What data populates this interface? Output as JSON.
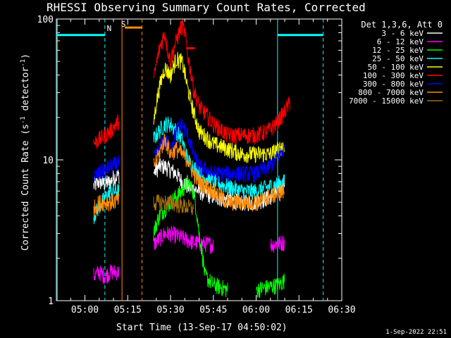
{
  "chart_data": {
    "type": "line",
    "title": "RHESSI Observing Summary Count Rates, Corrected",
    "xlabel": "Start Time (13-Sep-17 04:50:02)",
    "ylabel_main": "Corrected Count Rate (s",
    "ylabel_sup1": "-1",
    "ylabel_mid": " detector",
    "ylabel_sup2": "-1",
    "ylabel_end": ")",
    "y_scale": "log",
    "ylim": [
      1,
      100
    ],
    "xlim_minutes": [
      0,
      100
    ],
    "x_ticks": [
      {
        "m": 10,
        "label": "05:00"
      },
      {
        "m": 25,
        "label": "05:15"
      },
      {
        "m": 40,
        "label": "05:30"
      },
      {
        "m": 55,
        "label": "05:45"
      },
      {
        "m": 70,
        "label": "06:00"
      },
      {
        "m": 85,
        "label": "06:15"
      },
      {
        "m": 100,
        "label": "06:30"
      }
    ],
    "y_ticks": [
      {
        "v": 1,
        "label": "1"
      },
      {
        "v": 10,
        "label": "10"
      },
      {
        "v": 100,
        "label": "100"
      }
    ],
    "legend_header": "Det 1,3,6, Att 0",
    "legend_position": "top-right-outside",
    "series": [
      {
        "name": "3 - 6 keV",
        "color": "#ffffff",
        "points": [
          [
            13,
            6.5
          ],
          [
            15,
            7
          ],
          [
            17,
            6.8
          ],
          [
            19,
            7
          ],
          [
            20,
            7.5
          ],
          [
            22,
            7.8
          ],
          [
            34,
            8
          ],
          [
            36,
            9
          ],
          [
            38,
            9
          ],
          [
            40,
            8.5
          ],
          [
            42,
            8
          ],
          [
            44,
            7
          ],
          [
            46,
            6.5
          ],
          [
            50,
            6
          ],
          [
            55,
            5.5
          ],
          [
            60,
            5.2
          ],
          [
            65,
            5
          ],
          [
            70,
            5
          ],
          [
            75,
            5.5
          ],
          [
            78,
            6
          ],
          [
            80,
            7
          ]
        ]
      },
      {
        "name": "6 - 12 keV",
        "color": "#ff00ff",
        "points": [
          [
            13,
            1.5
          ],
          [
            15,
            1.6
          ],
          [
            17,
            1.5
          ],
          [
            19,
            1.6
          ],
          [
            22,
            1.6
          ],
          [
            34,
            2.5
          ],
          [
            38,
            3
          ],
          [
            40,
            3
          ],
          [
            44,
            2.8
          ],
          [
            48,
            2.6
          ],
          [
            55,
            2.5
          ],
          [
            65,
            2.5
          ],
          [
            75,
            2.5
          ],
          [
            80,
            2.6
          ]
        ]
      },
      {
        "name": "12 - 25 keV",
        "color": "#00ff00",
        "points": [
          [
            34,
            3
          ],
          [
            36,
            4
          ],
          [
            40,
            5
          ],
          [
            44,
            6
          ],
          [
            46,
            7
          ],
          [
            48,
            6
          ],
          [
            50,
            3
          ],
          [
            52,
            1.5
          ],
          [
            55,
            1.3
          ],
          [
            60,
            1.2
          ],
          [
            70,
            1.2
          ],
          [
            78,
            1.3
          ],
          [
            80,
            1.4
          ]
        ]
      },
      {
        "name": "25 - 50 keV",
        "color": "#00ffff",
        "points": [
          [
            13,
            4
          ],
          [
            16,
            5
          ],
          [
            19,
            6
          ],
          [
            22,
            6
          ],
          [
            34,
            14
          ],
          [
            36,
            16
          ],
          [
            38,
            18
          ],
          [
            40,
            18
          ],
          [
            42,
            16
          ],
          [
            44,
            14
          ],
          [
            46,
            10
          ],
          [
            50,
            8
          ],
          [
            55,
            7
          ],
          [
            60,
            6.5
          ],
          [
            65,
            6
          ],
          [
            70,
            6
          ],
          [
            75,
            6.5
          ],
          [
            80,
            7
          ]
        ]
      },
      {
        "name": "50 - 100 keV",
        "color": "#ffff00",
        "points": [
          [
            34,
            18
          ],
          [
            36,
            32
          ],
          [
            38,
            45
          ],
          [
            40,
            40
          ],
          [
            42,
            52
          ],
          [
            44,
            50
          ],
          [
            46,
            32
          ],
          [
            48,
            22
          ],
          [
            50,
            16
          ],
          [
            55,
            13
          ],
          [
            60,
            12
          ],
          [
            65,
            11
          ],
          [
            70,
            11
          ],
          [
            75,
            11
          ],
          [
            78,
            12
          ],
          [
            80,
            13
          ]
        ]
      },
      {
        "name": "100 - 300 keV",
        "color": "#ff0000",
        "points": [
          [
            13,
            13
          ],
          [
            15,
            14
          ],
          [
            17,
            15
          ],
          [
            19,
            16
          ],
          [
            21,
            18
          ],
          [
            22,
            19
          ],
          [
            34,
            35
          ],
          [
            36,
            60
          ],
          [
            38,
            80
          ],
          [
            39,
            60
          ],
          [
            40,
            50
          ],
          [
            42,
            70
          ],
          [
            44,
            90
          ],
          [
            45,
            80
          ],
          [
            46,
            55
          ],
          [
            48,
            32
          ],
          [
            50,
            24
          ],
          [
            55,
            18
          ],
          [
            60,
            15
          ],
          [
            65,
            15
          ],
          [
            70,
            15
          ],
          [
            74,
            16
          ],
          [
            77,
            18
          ],
          [
            80,
            22
          ],
          [
            82,
            26
          ]
        ]
      },
      {
        "name": "300 - 800 keV",
        "color": "#0000ff",
        "points": [
          [
            13,
            7.5
          ],
          [
            15,
            8
          ],
          [
            17,
            8.5
          ],
          [
            19,
            9
          ],
          [
            22,
            9.5
          ],
          [
            34,
            10
          ],
          [
            36,
            12
          ],
          [
            38,
            14
          ],
          [
            40,
            12
          ],
          [
            42,
            16
          ],
          [
            44,
            18
          ],
          [
            46,
            15
          ],
          [
            48,
            11
          ],
          [
            50,
            9
          ],
          [
            55,
            8
          ],
          [
            60,
            8
          ],
          [
            65,
            8
          ],
          [
            70,
            8
          ],
          [
            75,
            9
          ],
          [
            80,
            12
          ]
        ]
      },
      {
        "name": "800 - 7000 keV",
        "color": "#ff8c00",
        "points": [
          [
            13,
            4.5
          ],
          [
            15,
            5
          ],
          [
            17,
            5
          ],
          [
            19,
            5
          ],
          [
            22,
            5.2
          ],
          [
            34,
            9
          ],
          [
            36,
            11
          ],
          [
            38,
            14
          ],
          [
            40,
            11
          ],
          [
            42,
            12
          ],
          [
            44,
            11
          ],
          [
            46,
            10
          ],
          [
            48,
            8
          ],
          [
            50,
            7
          ],
          [
            55,
            6
          ],
          [
            60,
            5
          ],
          [
            65,
            5
          ],
          [
            70,
            5
          ],
          [
            75,
            5.5
          ],
          [
            80,
            6
          ]
        ]
      },
      {
        "name": "7000 - 15000 keV",
        "color": "#a07010",
        "points": [
          [
            34,
            5
          ],
          [
            40,
            5
          ],
          [
            48,
            4.5
          ],
          [
            60,
            4.5
          ],
          [
            70,
            4.5
          ],
          [
            80,
            5
          ]
        ]
      }
    ],
    "annotations": [
      {
        "label": "N",
        "color": "#00ffff",
        "m": 18.5,
        "v": 82
      },
      {
        "label": "S",
        "color": "#ff8c00",
        "m": 23.5,
        "v": 88
      }
    ],
    "footer_date": "1-Sep-2022 22:51"
  }
}
